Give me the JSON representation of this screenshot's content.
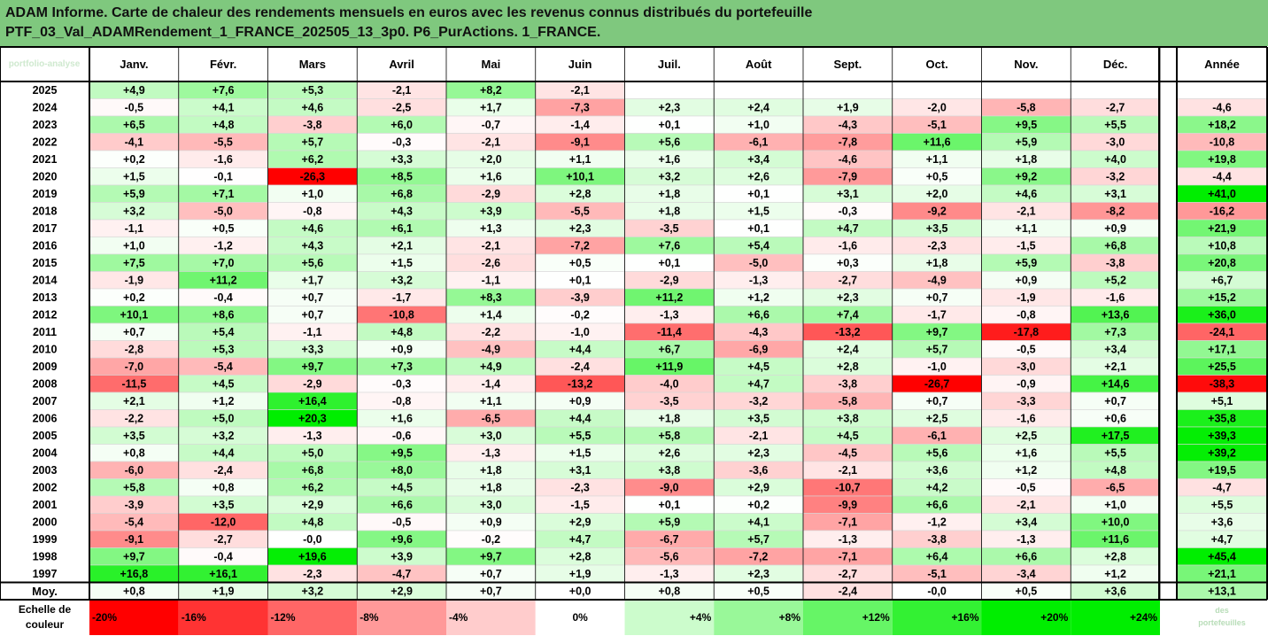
{
  "header": {
    "line1": "ADAM Informe. Carte de chaleur des rendements mensuels en euros avec les revenus connus distribués du portefeuille",
    "line2": "PTF_03_Val_ADAMRendement_1_FRANCE_202505_13_3p0. P6_PurActions. 1_FRANCE."
  },
  "watermark": "portfolio-analyse",
  "chart_data": {
    "type": "heatmap",
    "title": "ADAM Informe. Carte de chaleur des rendements mensuels en euros avec les revenus connus distribués du portefeuille PTF_03_Val_ADAMRendement_1_FRANCE_202505_13_3p0. P6_PurActions. 1_FRANCE.",
    "columns": [
      "Janv.",
      "Févr.",
      "Mars",
      "Avril",
      "Mai",
      "Juin",
      "Juil.",
      "Août",
      "Sept.",
      "Oct.",
      "Nov.",
      "Déc."
    ],
    "year_column_label": "Année",
    "rows": [
      {
        "year": "2025",
        "values": [
          "+4,9",
          "+7,6",
          "+5,3",
          "-2,1",
          "+8,2",
          "-2,1",
          "",
          "",
          "",
          "",
          "",
          ""
        ],
        "annual": ""
      },
      {
        "year": "2024",
        "values": [
          "-0,5",
          "+4,1",
          "+4,6",
          "-2,5",
          "+1,7",
          "-7,3",
          "+2,3",
          "+2,4",
          "+1,9",
          "-2,0",
          "-5,8",
          "-2,7"
        ],
        "annual": "-4,6"
      },
      {
        "year": "2023",
        "values": [
          "+6,5",
          "+4,8",
          "-3,8",
          "+6,0",
          "-0,7",
          "-1,4",
          "+0,1",
          "+1,0",
          "-4,3",
          "-5,1",
          "+9,5",
          "+5,5"
        ],
        "annual": "+18,2"
      },
      {
        "year": "2022",
        "values": [
          "-4,1",
          "-5,5",
          "+5,7",
          "-0,3",
          "-2,1",
          "-9,1",
          "+5,6",
          "-6,1",
          "-7,8",
          "+11,6",
          "+5,9",
          "-3,0"
        ],
        "annual": "-10,8"
      },
      {
        "year": "2021",
        "values": [
          "+0,2",
          "-1,6",
          "+6,2",
          "+3,3",
          "+2,0",
          "+1,1",
          "+1,6",
          "+3,4",
          "-4,6",
          "+1,1",
          "+1,8",
          "+4,0"
        ],
        "annual": "+19,8"
      },
      {
        "year": "2020",
        "values": [
          "+1,5",
          "-0,1",
          "-26,3",
          "+8,5",
          "+1,6",
          "+10,1",
          "+3,2",
          "+2,6",
          "-7,9",
          "+0,5",
          "+9,2",
          "-3,2"
        ],
        "annual": "-4,4"
      },
      {
        "year": "2019",
        "values": [
          "+5,9",
          "+7,1",
          "+1,0",
          "+6,8",
          "-2,9",
          "+2,8",
          "+1,8",
          "+0,1",
          "+3,1",
          "+2,0",
          "+4,6",
          "+3,1"
        ],
        "annual": "+41,0"
      },
      {
        "year": "2018",
        "values": [
          "+3,2",
          "-5,0",
          "-0,8",
          "+4,3",
          "+3,9",
          "-5,5",
          "+1,8",
          "+1,5",
          "-0,3",
          "-9,2",
          "-2,1",
          "-8,2"
        ],
        "annual": "-16,2"
      },
      {
        "year": "2017",
        "values": [
          "-1,1",
          "+0,5",
          "+4,6",
          "+6,1",
          "+1,3",
          "+2,3",
          "-3,5",
          "+0,1",
          "+4,7",
          "+3,5",
          "+1,1",
          "+0,9"
        ],
        "annual": "+21,9"
      },
      {
        "year": "2016",
        "values": [
          "+1,0",
          "-1,2",
          "+4,3",
          "+2,1",
          "-2,1",
          "-7,2",
          "+7,6",
          "+5,4",
          "-1,6",
          "-2,3",
          "-1,5",
          "+6,8"
        ],
        "annual": "+10,8"
      },
      {
        "year": "2015",
        "values": [
          "+7,5",
          "+7,0",
          "+5,6",
          "+1,5",
          "-2,6",
          "+0,5",
          "+0,1",
          "-5,0",
          "+0,3",
          "+1,8",
          "+5,9",
          "-3,8"
        ],
        "annual": "+20,8"
      },
      {
        "year": "2014",
        "values": [
          "-1,9",
          "+11,2",
          "+1,7",
          "+3,2",
          "-1,1",
          "+0,1",
          "-2,9",
          "-1,3",
          "-2,7",
          "-4,9",
          "+0,9",
          "+5,2"
        ],
        "annual": "+6,7"
      },
      {
        "year": "2013",
        "values": [
          "+0,2",
          "-0,4",
          "+0,7",
          "-1,7",
          "+8,3",
          "-3,9",
          "+11,2",
          "+1,2",
          "+2,3",
          "+0,7",
          "-1,9",
          "-1,6"
        ],
        "annual": "+15,2"
      },
      {
        "year": "2012",
        "values": [
          "+10,1",
          "+8,6",
          "+0,7",
          "-10,8",
          "+1,4",
          "-0,2",
          "-1,3",
          "+6,6",
          "+7,4",
          "-1,7",
          "-0,8",
          "+13,6"
        ],
        "annual": "+36,0"
      },
      {
        "year": "2011",
        "values": [
          "+0,7",
          "+5,4",
          "-1,1",
          "+4,8",
          "-2,2",
          "-1,0",
          "-11,4",
          "-4,3",
          "-13,2",
          "+9,7",
          "-17,8",
          "+7,3"
        ],
        "annual": "-24,1"
      },
      {
        "year": "2010",
        "values": [
          "-2,8",
          "+5,3",
          "+3,3",
          "+0,9",
          "-4,9",
          "+4,4",
          "+6,7",
          "-6,9",
          "+2,4",
          "+5,7",
          "-0,5",
          "+3,4"
        ],
        "annual": "+17,1"
      },
      {
        "year": "2009",
        "values": [
          "-7,0",
          "-5,4",
          "+9,7",
          "+7,3",
          "+4,9",
          "-2,4",
          "+11,9",
          "+4,5",
          "+2,8",
          "-1,0",
          "-3,0",
          "+2,1"
        ],
        "annual": "+25,5"
      },
      {
        "year": "2008",
        "values": [
          "-11,5",
          "+4,5",
          "-2,9",
          "-0,3",
          "-1,4",
          "-13,2",
          "-4,0",
          "+4,7",
          "-3,8",
          "-26,7",
          "-0,9",
          "+14,6"
        ],
        "annual": "-38,3"
      },
      {
        "year": "2007",
        "values": [
          "+2,1",
          "+1,2",
          "+16,4",
          "-0,8",
          "+1,1",
          "+0,9",
          "-3,5",
          "-3,2",
          "-5,8",
          "+0,7",
          "-3,3",
          "+0,7"
        ],
        "annual": "+5,1"
      },
      {
        "year": "2006",
        "values": [
          "-2,2",
          "+5,0",
          "+20,3",
          "+1,6",
          "-6,5",
          "+4,4",
          "+1,8",
          "+3,5",
          "+3,8",
          "+2,5",
          "-1,6",
          "+0,6"
        ],
        "annual": "+35,8"
      },
      {
        "year": "2005",
        "values": [
          "+3,5",
          "+3,2",
          "-1,3",
          "-0,6",
          "+3,0",
          "+5,5",
          "+5,8",
          "-2,1",
          "+4,5",
          "-6,1",
          "+2,5",
          "+17,5"
        ],
        "annual": "+39,3"
      },
      {
        "year": "2004",
        "values": [
          "+0,8",
          "+4,4",
          "+5,0",
          "+9,5",
          "-1,3",
          "+1,5",
          "+2,6",
          "+2,3",
          "-4,5",
          "+5,6",
          "+1,6",
          "+5,5"
        ],
        "annual": "+39,2"
      },
      {
        "year": "2003",
        "values": [
          "-6,0",
          "-2,4",
          "+6,8",
          "+8,0",
          "+1,8",
          "+3,1",
          "+3,8",
          "-3,6",
          "-2,1",
          "+3,6",
          "+1,2",
          "+4,8"
        ],
        "annual": "+19,5"
      },
      {
        "year": "2002",
        "values": [
          "+5,8",
          "+0,8",
          "+6,2",
          "+4,5",
          "+1,8",
          "-2,3",
          "-9,0",
          "+2,9",
          "-10,7",
          "+4,2",
          "-0,5",
          "-6,5"
        ],
        "annual": "-4,7"
      },
      {
        "year": "2001",
        "values": [
          "-3,9",
          "+3,5",
          "+2,9",
          "+6,6",
          "+3,0",
          "-1,5",
          "+0,1",
          "+0,2",
          "-9,9",
          "+6,6",
          "-2,1",
          "+1,0"
        ],
        "annual": "+5,5"
      },
      {
        "year": "2000",
        "values": [
          "-5,4",
          "-12,0",
          "+4,8",
          "-0,5",
          "+0,9",
          "+2,9",
          "+5,9",
          "+4,1",
          "-7,1",
          "-1,2",
          "+3,4",
          "+10,0"
        ],
        "annual": "+3,6"
      },
      {
        "year": "1999",
        "values": [
          "-9,1",
          "-2,7",
          "-0,0",
          "+9,6",
          "-0,2",
          "+4,7",
          "-6,7",
          "+5,7",
          "-1,3",
          "-3,8",
          "-1,3",
          "+11,6"
        ],
        "annual": "+4,7"
      },
      {
        "year": "1998",
        "values": [
          "+9,7",
          "-0,4",
          "+19,6",
          "+3,9",
          "+9,7",
          "+2,8",
          "-5,6",
          "-7,2",
          "-7,1",
          "+6,4",
          "+6,6",
          "+2,8"
        ],
        "annual": "+45,4"
      },
      {
        "year": "1997",
        "values": [
          "+16,8",
          "+16,1",
          "-2,3",
          "-4,7",
          "+0,7",
          "+1,9",
          "-1,3",
          "+2,3",
          "-2,7",
          "-5,1",
          "-3,4",
          "+1,2"
        ],
        "annual": "+21,1"
      }
    ],
    "average": {
      "label": "Moy.",
      "values": [
        "+0,8",
        "+1,9",
        "+3,2",
        "+2,9",
        "+0,7",
        "+0,0",
        "+0,8",
        "+0,5",
        "-2,4",
        "-0,0",
        "+0,5",
        "+3,6"
      ],
      "annual": "+13,1"
    },
    "scale": {
      "label": "Echelle de couleur",
      "values": [
        -20,
        -16,
        -12,
        -8,
        -4,
        0,
        4,
        8,
        12,
        16,
        20,
        24
      ],
      "labels": [
        "-20%",
        "-16%",
        "-12%",
        "-8%",
        "-4%",
        "0%",
        "+4%",
        "+8%",
        "+12%",
        "+16%",
        "+20%",
        "+24%"
      ],
      "monthly_max_abs": 20,
      "annual_max_abs": 40,
      "colors": {
        "negative": "#ff0000",
        "positive": "#00ee00",
        "neutral": "#ffffff"
      }
    },
    "footer_logo_text": "des portefeuilles"
  }
}
